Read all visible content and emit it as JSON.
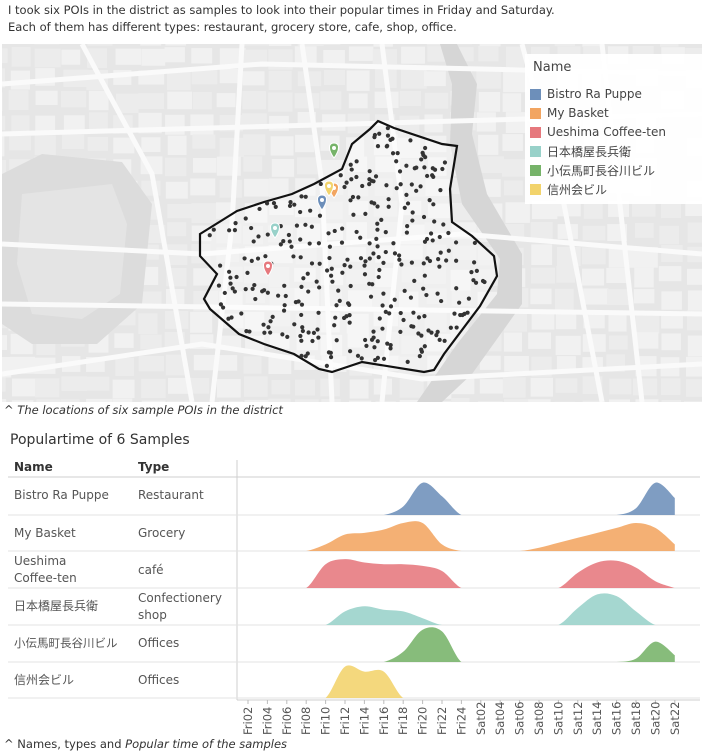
{
  "intro": {
    "line1": "I took six POIs in the district as samples to look into their popular times in Friday and Saturday.",
    "line2": "Each of them has different types: restaurant, grocery store, cafe, shop, office."
  },
  "map": {
    "legend_title": "Name",
    "legend": [
      {
        "label": "Bistro Ra Puppe",
        "color": "#6d8fba"
      },
      {
        "label": "My Basket",
        "color": "#f2a561"
      },
      {
        "label": "Ueshima Coffee-ten",
        "color": "#e6787d"
      },
      {
        "label": "日本橋屋長兵衛",
        "color": "#98d1c9"
      },
      {
        "label": "小伝馬町長谷川ビル",
        "color": "#76b369"
      },
      {
        "label": "信州会ビル",
        "color": "#f2d36b"
      }
    ],
    "caption_prefix": "^ ",
    "caption_text": "The locations of six sample POIs in the district"
  },
  "chart": {
    "title": "Populartime of 6 Samples",
    "col_name": "Name",
    "col_type": "Type",
    "caption_prefix": "^ Names, types and ",
    "caption_italic": "Popular time of the samples"
  },
  "chart_data": {
    "type": "area",
    "title": "Populartime of 6 Samples",
    "x": [
      "Fri02",
      "Fri04",
      "Fri06",
      "Fri08",
      "Fri10",
      "Fri12",
      "Fri14",
      "Fri16",
      "Fri18",
      "Fri20",
      "Fri22",
      "Fri24",
      "Sat02",
      "Sat04",
      "Sat06",
      "Sat08",
      "Sat10",
      "Sat12",
      "Sat14",
      "Sat16",
      "Sat18",
      "Sat20",
      "Sat22"
    ],
    "series": [
      {
        "name": "Bistro Ra Puppe",
        "type_label": "Restaurant",
        "color": "#6d8fba",
        "values": [
          0,
          0,
          0,
          0,
          0,
          0,
          0,
          0,
          0.25,
          0.95,
          0.55,
          0,
          0,
          0,
          0,
          0,
          0,
          0,
          0,
          0,
          0.2,
          0.95,
          0.5
        ]
      },
      {
        "name": "My Basket",
        "type_label": "Grocery",
        "color": "#f2a561",
        "values": [
          0,
          0,
          0,
          0,
          0.2,
          0.5,
          0.55,
          0.65,
          0.85,
          0.85,
          0.2,
          0,
          0,
          0,
          0,
          0.1,
          0.25,
          0.4,
          0.55,
          0.7,
          0.85,
          0.7,
          0.2
        ]
      },
      {
        "name": "Ueshima Coffee-ten",
        "type_label": "café",
        "color": "#e6787d",
        "values": [
          0,
          0,
          0,
          0,
          0.7,
          0.85,
          0.75,
          0.7,
          0.7,
          0.65,
          0.5,
          0,
          0,
          0,
          0,
          0,
          0,
          0.45,
          0.75,
          0.8,
          0.6,
          0.2,
          0
        ]
      },
      {
        "name": "日本橋屋長兵衛",
        "type_label": "Confectionery shop",
        "color": "#98d1c9",
        "values": [
          0,
          0,
          0,
          0,
          0,
          0.4,
          0.55,
          0.45,
          0.4,
          0.2,
          0,
          0,
          0,
          0,
          0,
          0,
          0,
          0.5,
          0.9,
          0.85,
          0.4,
          0,
          0
        ]
      },
      {
        "name": "小伝馬町長谷川ビル",
        "type_label": "Offices",
        "color": "#76b369",
        "values": [
          0,
          0,
          0,
          0,
          0,
          0,
          0,
          0,
          0.3,
          0.95,
          0.9,
          0,
          0,
          0,
          0,
          0,
          0,
          0,
          0,
          0,
          0.1,
          0.6,
          0.2
        ]
      },
      {
        "name": "信州会ビル",
        "type_label": "Offices",
        "color": "#f2d36b",
        "values": [
          0,
          0,
          0,
          0,
          0,
          0.95,
          0.8,
          0.8,
          0,
          0,
          0,
          0,
          0,
          0,
          0,
          0,
          0,
          0,
          0,
          0,
          0,
          0,
          0
        ]
      }
    ]
  }
}
